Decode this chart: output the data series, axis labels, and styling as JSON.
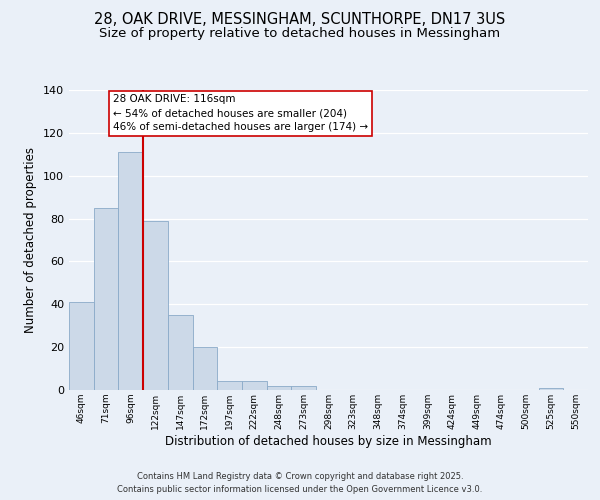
{
  "title": "28, OAK DRIVE, MESSINGHAM, SCUNTHORPE, DN17 3US",
  "subtitle": "Size of property relative to detached houses in Messingham",
  "xlabel": "Distribution of detached houses by size in Messingham",
  "ylabel": "Number of detached properties",
  "bin_labels": [
    "46sqm",
    "71sqm",
    "96sqm",
    "122sqm",
    "147sqm",
    "172sqm",
    "197sqm",
    "222sqm",
    "248sqm",
    "273sqm",
    "298sqm",
    "323sqm",
    "348sqm",
    "374sqm",
    "399sqm",
    "424sqm",
    "449sqm",
    "474sqm",
    "500sqm",
    "525sqm",
    "550sqm"
  ],
  "bar_values": [
    41,
    85,
    111,
    79,
    35,
    20,
    4,
    4,
    2,
    2,
    0,
    0,
    0,
    0,
    0,
    0,
    0,
    0,
    0,
    1,
    0
  ],
  "bar_color": "#ccd9e8",
  "bar_edge_color": "#8aaac8",
  "vline_color": "#cc0000",
  "annotation_title": "28 OAK DRIVE: 116sqm",
  "annotation_line1": "← 54% of detached houses are smaller (204)",
  "annotation_line2": "46% of semi-detached houses are larger (174) →",
  "annotation_box_facecolor": "#ffffff",
  "annotation_box_edgecolor": "#cc0000",
  "ylim": [
    0,
    140
  ],
  "yticks": [
    0,
    20,
    40,
    60,
    80,
    100,
    120,
    140
  ],
  "footer1": "Contains HM Land Registry data © Crown copyright and database right 2025.",
  "footer2": "Contains public sector information licensed under the Open Government Licence v3.0.",
  "title_fontsize": 10.5,
  "subtitle_fontsize": 9.5,
  "background_color": "#eaf0f8",
  "plot_bg_color": "#eaf0f8",
  "grid_color": "#ffffff"
}
